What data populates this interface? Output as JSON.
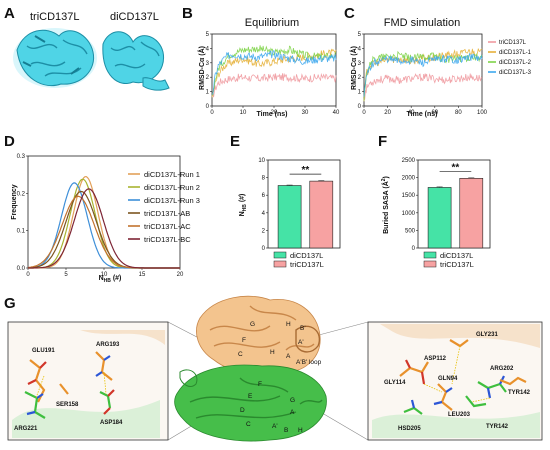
{
  "palette": {
    "diCD137L_run1": "#e3a15a",
    "diCD137L_run2": "#a8b431",
    "diCD137L_run3": "#3e8fd8",
    "triCD137L_AB": "#7c5520",
    "triCD137L_AC": "#c2732e",
    "triCD137L_BC": "#7e2535",
    "eq_tri": "#f09aa0",
    "eq_di1": "#e6b13a",
    "eq_di2": "#7ed348",
    "eq_di3": "#3ea8ee",
    "bar_di": "#45e3a6",
    "bar_tri": "#f7a2a2",
    "cyan": "#4fd4e6",
    "orange": "#f0b878",
    "green": "#45b845"
  },
  "panels": {
    "A": {
      "label": "A",
      "names": [
        "triCD137L",
        "diCD137L"
      ]
    },
    "B": {
      "label": "B"
    },
    "C": {
      "label": "C"
    },
    "D": {
      "label": "D"
    },
    "E": {
      "label": "E"
    },
    "F": {
      "label": "F"
    },
    "G": {
      "label": "G",
      "left_residues": [
        "GLU191",
        "ARG193",
        "SER158",
        "ASP184",
        "ARG221"
      ],
      "right_residues": [
        "GLY231",
        "ASP112",
        "ARG202",
        "GLY114",
        "GLN94",
        "TYR142",
        "LEU203",
        "TYR142",
        "HSD205"
      ],
      "sheets_top": [
        "G",
        "H",
        "B'",
        "F",
        "A'",
        "C",
        "H",
        "A"
      ],
      "sheets_bottom": [
        "F",
        "E",
        "G",
        "D",
        "A",
        "C",
        "A'",
        "B",
        "H"
      ],
      "loop_label": "A'B' loop"
    }
  },
  "chart_data": [
    {
      "id": "B",
      "type": "line",
      "title": "Equilibrium",
      "xlabel": "Time (ns)",
      "ylabel": "RMSD-Cα (Å)",
      "xlim": [
        0,
        40
      ],
      "ylim": [
        0,
        5
      ],
      "xticks": [
        0,
        10,
        20,
        30,
        40
      ],
      "yticks": [
        0,
        1,
        2,
        3,
        4,
        5
      ],
      "series": [
        {
          "key": "eq_tri",
          "x": [
            0,
            1,
            2,
            4,
            6,
            10,
            15,
            20,
            25,
            30,
            35,
            40
          ],
          "y": [
            0.5,
            1.2,
            1.6,
            1.8,
            1.9,
            2.0,
            1.9,
            2.0,
            2.0,
            1.9,
            2.0,
            1.9
          ]
        },
        {
          "key": "eq_di1",
          "x": [
            0,
            1,
            2,
            4,
            6,
            10,
            15,
            20,
            25,
            30,
            35,
            40
          ],
          "y": [
            0.6,
            1.6,
            2.2,
            2.8,
            3.0,
            3.3,
            2.9,
            3.1,
            3.3,
            3.4,
            3.6,
            3.7
          ]
        },
        {
          "key": "eq_di2",
          "x": [
            0,
            1,
            2,
            4,
            6,
            10,
            15,
            20,
            25,
            30,
            35,
            40
          ],
          "y": [
            0.6,
            1.8,
            2.6,
            3.2,
            3.6,
            3.9,
            4.0,
            3.7,
            3.9,
            3.5,
            3.4,
            3.5
          ]
        },
        {
          "key": "eq_di3",
          "x": [
            0,
            1,
            2,
            4,
            6,
            10,
            15,
            20,
            25,
            30,
            35,
            40
          ],
          "y": [
            0.6,
            2.0,
            2.8,
            3.3,
            3.6,
            3.5,
            3.4,
            3.6,
            3.3,
            3.1,
            3.3,
            3.3
          ]
        }
      ]
    },
    {
      "id": "C",
      "type": "line",
      "title": "FMD simulation",
      "xlabel": "Time (ns)",
      "ylabel": "RMSD-Cα (Å)",
      "xlim": [
        0,
        100
      ],
      "ylim": [
        0,
        5
      ],
      "xticks": [
        0,
        20,
        40,
        60,
        80,
        100
      ],
      "yticks": [
        0,
        1,
        2,
        3,
        4,
        5
      ],
      "legend": [
        "triCD137L",
        "diCD137L-1",
        "diCD137L-2",
        "diCD137L-3"
      ],
      "legend_position": "right",
      "series": [
        {
          "key": "eq_tri",
          "name": "triCD137L",
          "x": [
            0,
            2,
            5,
            10,
            20,
            30,
            40,
            50,
            60,
            70,
            80,
            90,
            100
          ],
          "y": [
            0.5,
            1.2,
            1.6,
            1.8,
            1.9,
            1.8,
            1.9,
            2.0,
            1.9,
            1.8,
            1.9,
            2.0,
            1.9
          ]
        },
        {
          "key": "eq_di1",
          "name": "diCD137L-1",
          "x": [
            0,
            2,
            5,
            10,
            20,
            30,
            40,
            50,
            60,
            70,
            80,
            90,
            100
          ],
          "y": [
            0.6,
            2.2,
            2.8,
            3.0,
            3.2,
            3.3,
            3.1,
            3.3,
            3.4,
            3.5,
            3.6,
            3.8,
            3.7
          ]
        },
        {
          "key": "eq_di2",
          "name": "diCD137L-2",
          "x": [
            0,
            2,
            5,
            10,
            20,
            30,
            40,
            50,
            60,
            70,
            80,
            90,
            100
          ],
          "y": [
            0.6,
            2.4,
            3.0,
            3.3,
            3.4,
            3.5,
            3.3,
            3.4,
            3.5,
            3.2,
            3.3,
            3.4,
            3.4
          ]
        },
        {
          "key": "eq_di3",
          "name": "diCD137L-3",
          "x": [
            0,
            2,
            5,
            10,
            20,
            30,
            40,
            50,
            60,
            70,
            80,
            90,
            100
          ],
          "y": [
            0.6,
            2.0,
            2.7,
            3.1,
            3.3,
            3.1,
            3.2,
            3.0,
            3.2,
            3.3,
            3.2,
            3.4,
            3.3
          ]
        }
      ]
    },
    {
      "id": "D",
      "type": "line",
      "xlabel": "N_HB (#)",
      "ylabel": "Frequency",
      "xlim": [
        0,
        20
      ],
      "ylim": [
        0,
        0.3
      ],
      "xticks": [
        0,
        5,
        10,
        15,
        20
      ],
      "yticks": [
        0.0,
        0.1,
        0.2,
        0.3
      ],
      "legend": [
        "diCD137L-Run 1",
        "diCD137L-Run 2",
        "diCD137L-Run 3",
        "triCD137L-AB",
        "triCD137L-AC",
        "triCD137L-BC"
      ],
      "legend_position": "right",
      "series": [
        {
          "key": "diCD137L_run1",
          "name": "diCD137L-Run 1",
          "mean": 7.6,
          "sd": 1.6,
          "peak": 0.245
        },
        {
          "key": "diCD137L_run2",
          "name": "diCD137L-Run 2",
          "mean": 7.2,
          "sd": 1.65,
          "peak": 0.238
        },
        {
          "key": "diCD137L_run3",
          "name": "diCD137L-Run 3",
          "mean": 6.1,
          "sd": 1.7,
          "peak": 0.228
        },
        {
          "key": "triCD137L_AB",
          "name": "triCD137L-AB",
          "mean": 7.0,
          "sd": 2.0,
          "peak": 0.205
        },
        {
          "key": "triCD137L_AC",
          "name": "triCD137L-AC",
          "mean": 6.6,
          "sd": 2.1,
          "peak": 0.192
        },
        {
          "key": "triCD137L_BC",
          "name": "triCD137L-BC",
          "mean": 8.0,
          "sd": 1.9,
          "peak": 0.212
        }
      ]
    },
    {
      "id": "E",
      "type": "bar",
      "ylabel": "N_HB (#)",
      "categories": [
        "diCD137L",
        "triCD137L"
      ],
      "values": [
        7.1,
        7.6
      ],
      "errors": [
        0.05,
        0.05
      ],
      "ylim": [
        0,
        10
      ],
      "yticks": [
        0,
        2,
        4,
        6,
        8,
        10
      ],
      "significance": "**",
      "legend": [
        "diCD137L",
        "triCD137L"
      ],
      "legend_position": "bottom"
    },
    {
      "id": "F",
      "type": "bar",
      "ylabel": "Buried SASA (Å²)",
      "categories": [
        "diCD137L",
        "triCD137L"
      ],
      "values": [
        1720,
        1980
      ],
      "errors": [
        15,
        12
      ],
      "ylim": [
        0,
        2500
      ],
      "yticks": [
        0,
        500,
        1000,
        1500,
        2000,
        2500
      ],
      "significance": "**",
      "legend": [
        "diCD137L",
        "triCD137L"
      ],
      "legend_position": "bottom"
    }
  ]
}
